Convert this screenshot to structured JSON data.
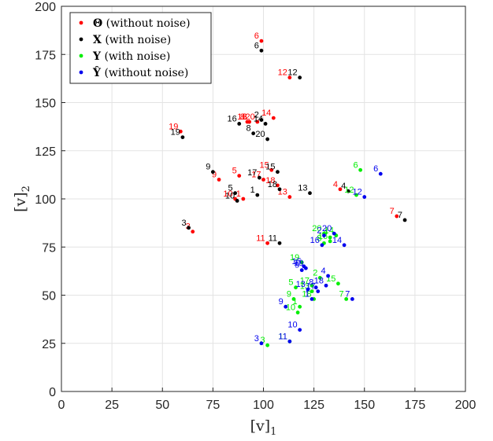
{
  "chart_data": {
    "type": "scatter",
    "title": "",
    "xlabel": "[v]",
    "xlabel_subscript": "1",
    "ylabel": "[v]",
    "ylabel_subscript": "2",
    "xlim": [
      0,
      200
    ],
    "ylim": [
      0,
      200
    ],
    "xticks": [
      0,
      25,
      50,
      75,
      100,
      125,
      150,
      175,
      200
    ],
    "yticks": [
      0,
      25,
      50,
      75,
      100,
      125,
      150,
      175,
      200
    ],
    "grid": true,
    "legend_position": "top-left",
    "series": [
      {
        "name": "Θ (without noise)",
        "legend_symbol": "Θ",
        "legend_text": "(without noise)",
        "color": "#ff0000",
        "points": [
          {
            "label": "1",
            "x": 90,
            "y": 100
          },
          {
            "label": "2",
            "x": 93,
            "y": 140
          },
          {
            "label": "3",
            "x": 65,
            "y": 83
          },
          {
            "label": "4",
            "x": 138,
            "y": 105
          },
          {
            "label": "5",
            "x": 88,
            "y": 112
          },
          {
            "label": "6",
            "x": 99,
            "y": 182
          },
          {
            "label": "7",
            "x": 166,
            "y": 91
          },
          {
            "label": "8",
            "x": 92,
            "y": 140
          },
          {
            "label": "9",
            "x": 78,
            "y": 110
          },
          {
            "label": "10",
            "x": 86,
            "y": 100
          },
          {
            "label": "11",
            "x": 102,
            "y": 77
          },
          {
            "label": "12",
            "x": 113,
            "y": 163
          },
          {
            "label": "13",
            "x": 113,
            "y": 101
          },
          {
            "label": "14",
            "x": 105,
            "y": 142
          },
          {
            "label": "15",
            "x": 104,
            "y": 115
          },
          {
            "label": "16",
            "x": 93,
            "y": 140
          },
          {
            "label": "17",
            "x": 100,
            "y": 110
          },
          {
            "label": "18",
            "x": 107,
            "y": 107
          },
          {
            "label": "19",
            "x": 59,
            "y": 135
          },
          {
            "label": "20",
            "x": 97,
            "y": 140
          }
        ]
      },
      {
        "name": "X (with noise)",
        "legend_symbol": "X",
        "legend_text": "(with noise)",
        "color": "#000000",
        "points": [
          {
            "label": "1",
            "x": 97,
            "y": 102
          },
          {
            "label": "2",
            "x": 99,
            "y": 141
          },
          {
            "label": "3",
            "x": 63,
            "y": 85
          },
          {
            "label": "4",
            "x": 142,
            "y": 104
          },
          {
            "label": "5",
            "x": 86,
            "y": 103
          },
          {
            "label": "6",
            "x": 99,
            "y": 177
          },
          {
            "label": "7",
            "x": 170,
            "y": 89
          },
          {
            "label": "8",
            "x": 95,
            "y": 134
          },
          {
            "label": "9",
            "x": 75,
            "y": 114
          },
          {
            "label": "10",
            "x": 87,
            "y": 99
          },
          {
            "label": "11",
            "x": 108,
            "y": 77
          },
          {
            "label": "12",
            "x": 118,
            "y": 163
          },
          {
            "label": "13",
            "x": 123,
            "y": 103
          },
          {
            "label": "14",
            "x": 101,
            "y": 139
          },
          {
            "label": "15",
            "x": 107,
            "y": 114
          },
          {
            "label": "16",
            "x": 88,
            "y": 139
          },
          {
            "label": "17",
            "x": 98,
            "y": 111
          },
          {
            "label": "18",
            "x": 108,
            "y": 105
          },
          {
            "label": "19",
            "x": 60,
            "y": 132
          },
          {
            "label": "20",
            "x": 102,
            "y": 131
          }
        ]
      },
      {
        "name": "Y (with noise)",
        "legend_symbol": "Y",
        "legend_text": "(with noise)",
        "color": "#00ee00",
        "points": [
          {
            "label": "1",
            "x": 118,
            "y": 44
          },
          {
            "label": "2",
            "x": 128,
            "y": 59
          },
          {
            "label": "3",
            "x": 102,
            "y": 24
          },
          {
            "label": "4",
            "x": 133,
            "y": 80
          },
          {
            "label": "5",
            "x": 116,
            "y": 54
          },
          {
            "label": "6",
            "x": 148,
            "y": 115
          },
          {
            "label": "7",
            "x": 141,
            "y": 48
          },
          {
            "label": "8",
            "x": 130,
            "y": 77
          },
          {
            "label": "9",
            "x": 115,
            "y": 48
          },
          {
            "label": "10",
            "x": 117,
            "y": 41
          },
          {
            "label": "11",
            "x": 113,
            "y": 26
          },
          {
            "label": "12",
            "x": 146,
            "y": 102
          },
          {
            "label": "13",
            "x": 124,
            "y": 52
          },
          {
            "label": "14",
            "x": 136,
            "y": 81
          },
          {
            "label": "15",
            "x": 137,
            "y": 56
          },
          {
            "label": "16",
            "x": 133,
            "y": 78
          },
          {
            "label": "17",
            "x": 124,
            "y": 55
          },
          {
            "label": "18",
            "x": 125,
            "y": 48
          },
          {
            "label": "19",
            "x": 119,
            "y": 67
          },
          {
            "label": "20",
            "x": 130,
            "y": 82
          }
        ]
      },
      {
        "name": "Ŷ (without noise)",
        "legend_symbol": "Ŷ",
        "legend_text": "(without noise)",
        "color": "#0000ee",
        "points": [
          {
            "label": "1",
            "x": 124,
            "y": 48
          },
          {
            "label": "2",
            "x": 130,
            "y": 81
          },
          {
            "label": "3",
            "x": 99,
            "y": 25
          },
          {
            "label": "4",
            "x": 132,
            "y": 60
          },
          {
            "label": "5",
            "x": 119,
            "y": 63
          },
          {
            "label": "6",
            "x": 158,
            "y": 113
          },
          {
            "label": "7",
            "x": 144,
            "y": 48
          },
          {
            "label": "8",
            "x": 126,
            "y": 54
          },
          {
            "label": "9",
            "x": 111,
            "y": 44
          },
          {
            "label": "10",
            "x": 118,
            "y": 32
          },
          {
            "label": "11",
            "x": 113,
            "y": 26
          },
          {
            "label": "12",
            "x": 150,
            "y": 101
          },
          {
            "label": "13",
            "x": 122,
            "y": 53
          },
          {
            "label": "14",
            "x": 140,
            "y": 76
          },
          {
            "label": "15",
            "x": 120,
            "y": 65
          },
          {
            "label": "16",
            "x": 129,
            "y": 76
          },
          {
            "label": "17",
            "x": 127,
            "y": 52
          },
          {
            "label": "18",
            "x": 131,
            "y": 55
          },
          {
            "label": "19",
            "x": 121,
            "y": 64
          },
          {
            "label": "20",
            "x": 135,
            "y": 82
          }
        ]
      }
    ]
  }
}
